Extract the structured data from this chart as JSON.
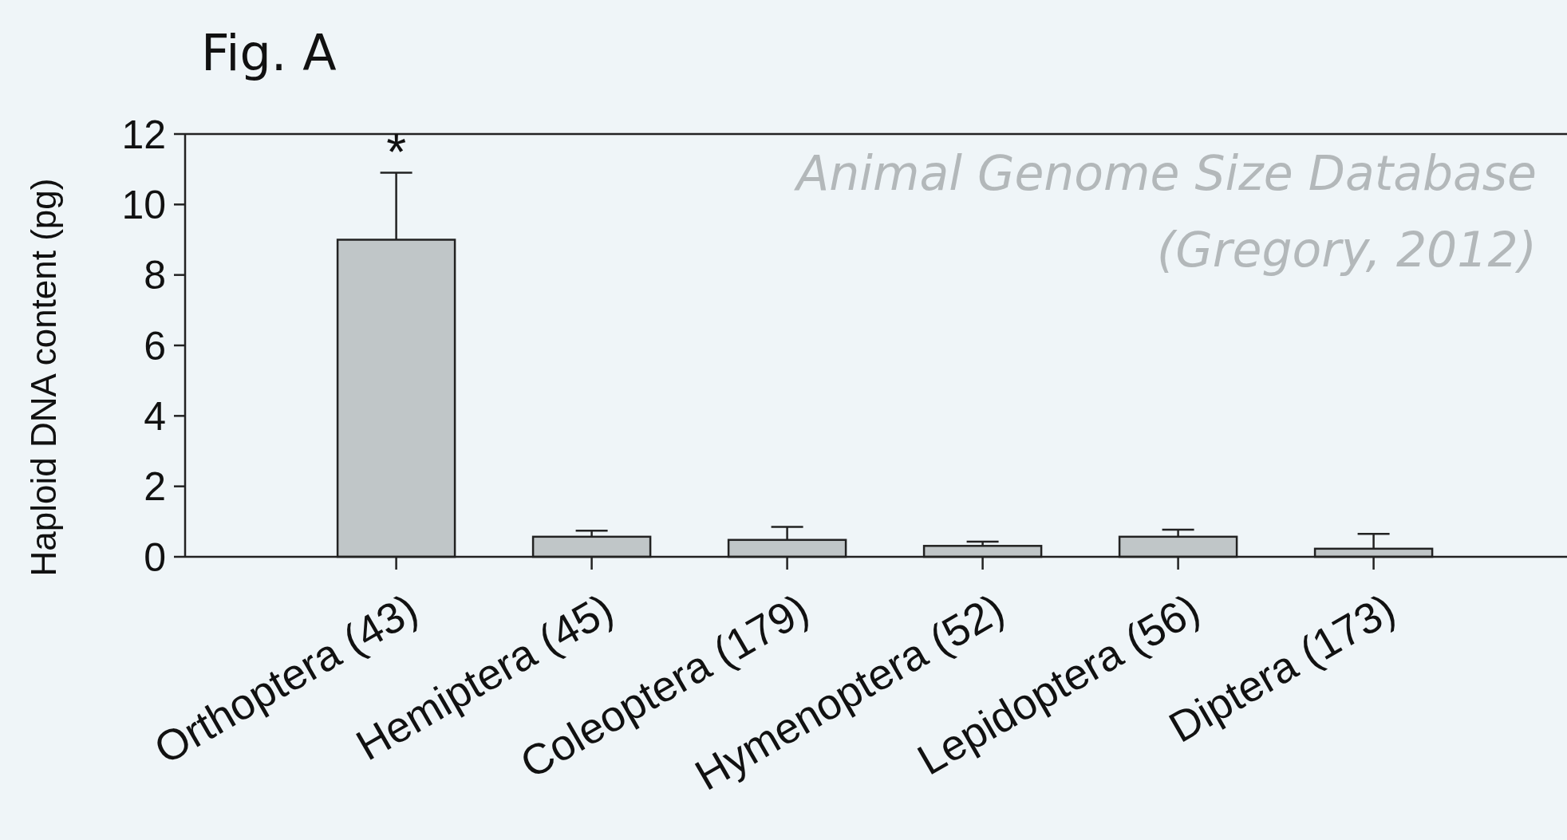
{
  "chart_data": {
    "type": "bar",
    "title": "Fig. A",
    "ylabel": "Haploid DNA content (pg)",
    "categories": [
      "Orthoptera (43)",
      "Hemiptera (45)",
      "Coleoptera (179)",
      "Hymenoptera (52)",
      "Lepidoptera (56)",
      "Diptera (173)"
    ],
    "values": [
      9.0,
      0.57,
      0.48,
      0.31,
      0.57,
      0.23
    ],
    "errors": [
      [
        9.0,
        10.9
      ],
      [
        0.57,
        0.74
      ],
      [
        0.48,
        0.85
      ],
      [
        0.31,
        0.43
      ],
      [
        0.57,
        0.77
      ],
      [
        0.23,
        0.65
      ]
    ],
    "color": "#c0c6c8",
    "ylim": [
      0,
      12
    ],
    "yticks": [
      0,
      2,
      4,
      6,
      8,
      10,
      12
    ],
    "grid": false,
    "annotations": [
      {
        "text": "*",
        "x": "Orthoptera (43)",
        "y": 10.9
      },
      "Animal Genome Size Database",
      "(Gregory, 2012)"
    ]
  }
}
